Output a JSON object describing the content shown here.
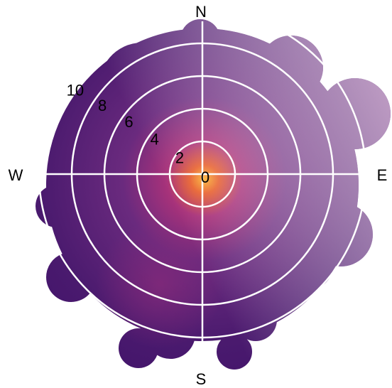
{
  "chart_data": {
    "type": "polar",
    "directions": [
      "N",
      "E",
      "S",
      "W"
    ],
    "rlim": [
      0,
      12
    ],
    "rticks": [
      0,
      2,
      4,
      6,
      8,
      10
    ],
    "grid": true
  }
}
